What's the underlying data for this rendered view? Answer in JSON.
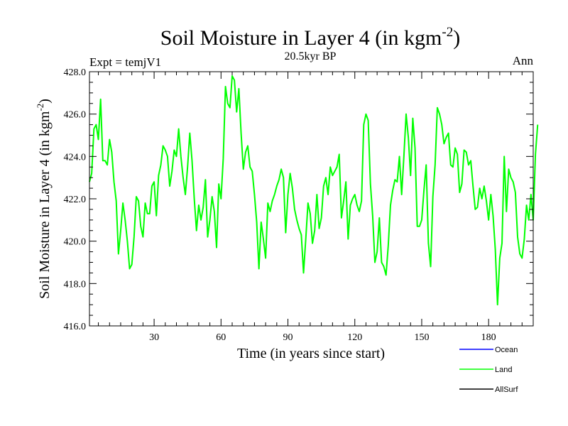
{
  "title_main": "Soil Moisture in Layer 4 (in kgm",
  "title_sup": "-2",
  "title_close": ")",
  "subtitle": "20.5kyr BP",
  "expt_label": "Expt = temjV1",
  "season_label": "Ann",
  "chart_data": {
    "type": "line",
    "title": "Soil Moisture in Layer 4 (in kgm-2)",
    "xlabel": "Time (in years since start)",
    "ylabel_main": "Soil Moisture in Layer 4 (in kgm",
    "ylabel_sup": "-2",
    "ylabel_close": ")",
    "xlim": [
      1,
      200
    ],
    "ylim": [
      416.0,
      428.0
    ],
    "x_ticks": [
      30,
      60,
      90,
      120,
      150,
      180
    ],
    "x_tick_labels": [
      "30",
      "60",
      "90",
      "120",
      "150",
      "180"
    ],
    "y_ticks": [
      416,
      418,
      420,
      422,
      424,
      426,
      428
    ],
    "y_tick_labels": [
      "416.0",
      "418.0",
      "420.0",
      "422.0",
      "424.0",
      "426.0",
      "428.0"
    ],
    "x_start": 1,
    "x_step": 1,
    "series": [
      {
        "name": "Land",
        "color": "#00ff00",
        "values": [
          422.8,
          423.2,
          425.3,
          425.5,
          424.8,
          426.7,
          423.8,
          423.8,
          423.6,
          424.8,
          424.2,
          422.8,
          421.9,
          419.4,
          420.5,
          421.8,
          421.0,
          420.0,
          418.7,
          418.9,
          420.2,
          422.1,
          421.9,
          420.7,
          420.2,
          421.8,
          421.3,
          421.3,
          422.6,
          422.8,
          421.2,
          423.1,
          423.6,
          424.5,
          424.3,
          424.0,
          422.6,
          423.3,
          424.3,
          424.0,
          425.3,
          424.0,
          423.0,
          422.2,
          423.5,
          425.1,
          423.8,
          422.0,
          420.5,
          421.7,
          421.0,
          421.6,
          422.9,
          420.2,
          421.0,
          422.1,
          421.4,
          419.7,
          422.7,
          422.0,
          423.9,
          427.3,
          426.5,
          426.3,
          427.8,
          427.6,
          426.1,
          427.2,
          425.1,
          423.4,
          424.2,
          424.5,
          423.5,
          423.3,
          422.2,
          420.9,
          418.7,
          420.9,
          420.1,
          419.2,
          421.8,
          421.4,
          421.9,
          422.2,
          422.6,
          422.9,
          423.4,
          423.0,
          420.4,
          422.2,
          423.2,
          422.5,
          421.5,
          421.0,
          420.6,
          420.3,
          418.5,
          420.1,
          421.8,
          421.3,
          419.9,
          420.5,
          422.2,
          420.6,
          421.1,
          422.6,
          423.0,
          422.2,
          423.5,
          423.1,
          423.3,
          423.5,
          424.1,
          421.1,
          421.9,
          422.8,
          420.1,
          421.7,
          422.0,
          422.2,
          421.7,
          421.4,
          421.9,
          425.5,
          426.0,
          425.7,
          422.7,
          421.2,
          419.0,
          419.5,
          421.1,
          419.0,
          418.8,
          418.4,
          419.8,
          421.7,
          422.4,
          422.9,
          422.8,
          424.0,
          422.2,
          424.0,
          426.0,
          424.9,
          423.1,
          425.8,
          424.4,
          420.7,
          420.7,
          421.0,
          422.4,
          423.6,
          419.9,
          418.8,
          422.1,
          423.6,
          426.3,
          426.0,
          425.5,
          424.6,
          424.9,
          425.1,
          423.6,
          423.5,
          424.4,
          424.1,
          422.3,
          422.7,
          424.3,
          424.2,
          423.6,
          423.8,
          422.6,
          421.5,
          421.6,
          422.5,
          422.0,
          422.6,
          421.9,
          421.0,
          422.2,
          421.2,
          419.6,
          417.0,
          419.2,
          419.9,
          424.0,
          421.4,
          423.4,
          423.0,
          422.8,
          422.3,
          420.2,
          419.4,
          419.2,
          420.1,
          421.7,
          421.0,
          422.2,
          421.0,
          424.1,
          425.5
        ]
      }
    ],
    "legend": [
      {
        "name": "Ocean",
        "color": "#0000ff"
      },
      {
        "name": "Land",
        "color": "#00ff00"
      },
      {
        "name": "AllSurf",
        "color": "#000000"
      }
    ],
    "legend_position": "bottom-right"
  }
}
